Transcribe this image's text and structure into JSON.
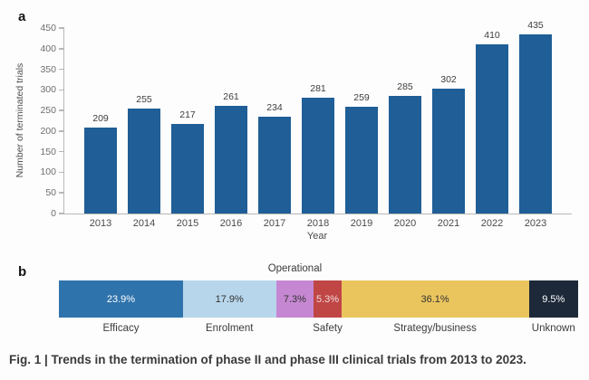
{
  "figure": {
    "caption": "Fig. 1 | Trends in the termination of phase II and phase III clinical trials from 2013 to 2023."
  },
  "panel_a": {
    "label": "a"
  },
  "panel_b": {
    "label": "b"
  },
  "colors": {
    "bar_blue": "#1f5e96",
    "axis_gray": "#b7b7b7",
    "tick_label_gray": "#6e6e6e",
    "caption_gray": "#3a3a3a"
  },
  "chart_data": [
    {
      "id": "terminated-trials-by-year",
      "panel": "a",
      "type": "bar",
      "categories": [
        "2013",
        "2014",
        "2015",
        "2016",
        "2017",
        "2018",
        "2019",
        "2020",
        "2021",
        "2022",
        "2023"
      ],
      "values": [
        209,
        255,
        217,
        261,
        234,
        281,
        259,
        285,
        302,
        410,
        435
      ],
      "xlabel": "Year",
      "ylabel": "Number of terminated trials",
      "ylim": [
        0,
        450
      ],
      "yticks": [
        0,
        50,
        100,
        150,
        200,
        250,
        300,
        350,
        400,
        450
      ],
      "grid": false,
      "legend": "none",
      "bar_color": "#1f5e96",
      "value_labels": true
    },
    {
      "id": "termination-reasons",
      "panel": "b",
      "type": "stacked_bar_horizontal",
      "units": "percent",
      "segments": [
        {
          "label": "Efficacy",
          "value": 23.9,
          "display": "23.9%",
          "color": "#2f73ac",
          "text_color": "#ffffff",
          "label_placement": "below"
        },
        {
          "label": "Enrolment",
          "value": 17.9,
          "display": "17.9%",
          "color": "#b8d6eb",
          "text_color": "#333333",
          "label_placement": "below"
        },
        {
          "label": "Operational",
          "value": 7.3,
          "display": "7.3%",
          "color": "#c687d2",
          "text_color": "#333333",
          "label_placement": "above"
        },
        {
          "label": "Safety",
          "value": 5.3,
          "display": "5.3%",
          "color": "#c04646",
          "text_color": "#f2dcdc",
          "label_placement": "below"
        },
        {
          "label": "Strategy/business",
          "value": 36.1,
          "display": "36.1%",
          "color": "#eac55e",
          "text_color": "#333333",
          "label_placement": "below"
        },
        {
          "label": "Unknown",
          "value": 9.5,
          "display": "9.5%",
          "color": "#1d2939",
          "text_color": "#ffffff",
          "label_placement": "below"
        }
      ]
    }
  ]
}
